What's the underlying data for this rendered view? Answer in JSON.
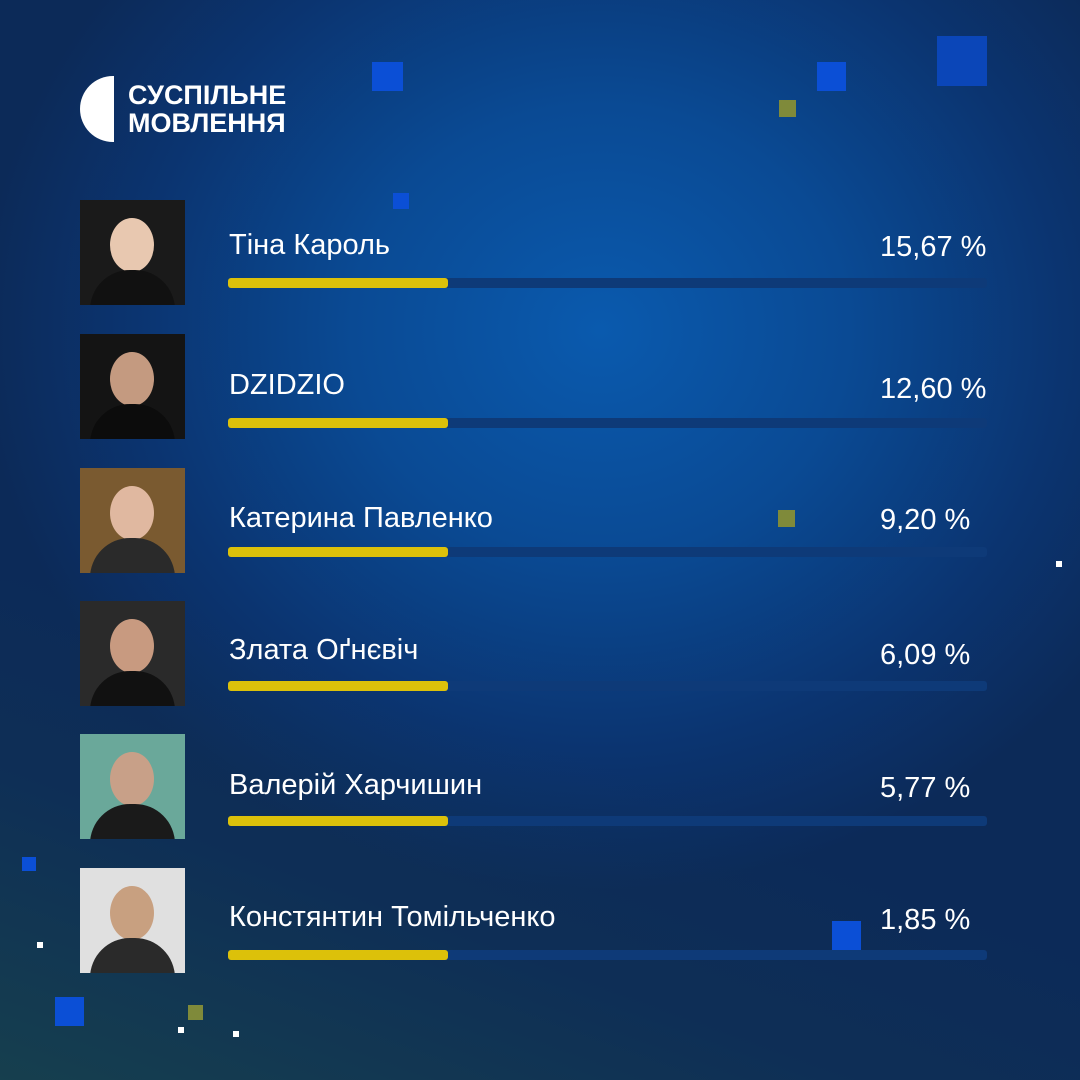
{
  "logo": {
    "line1": "СУСПІЛЬНЕ",
    "line2": "МОВЛЕННЯ"
  },
  "colors": {
    "bar_fill": "#dcc10a",
    "bar_track": "#0e3a78",
    "accent_blue": "#0a4fd0",
    "accent_olive": "#7f8a3a"
  },
  "results": [
    {
      "name": "Тіна Кароль",
      "percent": "15,67 %",
      "photo": "portrait-photo"
    },
    {
      "name": "DZIDZIO",
      "percent": "12,60 %",
      "photo": "portrait-photo"
    },
    {
      "name": "Катерина Павленко",
      "percent": "9,20 %",
      "photo": "portrait-photo"
    },
    {
      "name": "Злата Оґнєвіч",
      "percent": "6,09 %",
      "photo": "portrait-photo"
    },
    {
      "name": "Валерій Харчишин",
      "percent": "5,77 %",
      "photo": "portrait-photo"
    },
    {
      "name": "Констянтин Томільченко",
      "percent": "1,85 %",
      "photo": "portrait-photo"
    }
  ]
}
